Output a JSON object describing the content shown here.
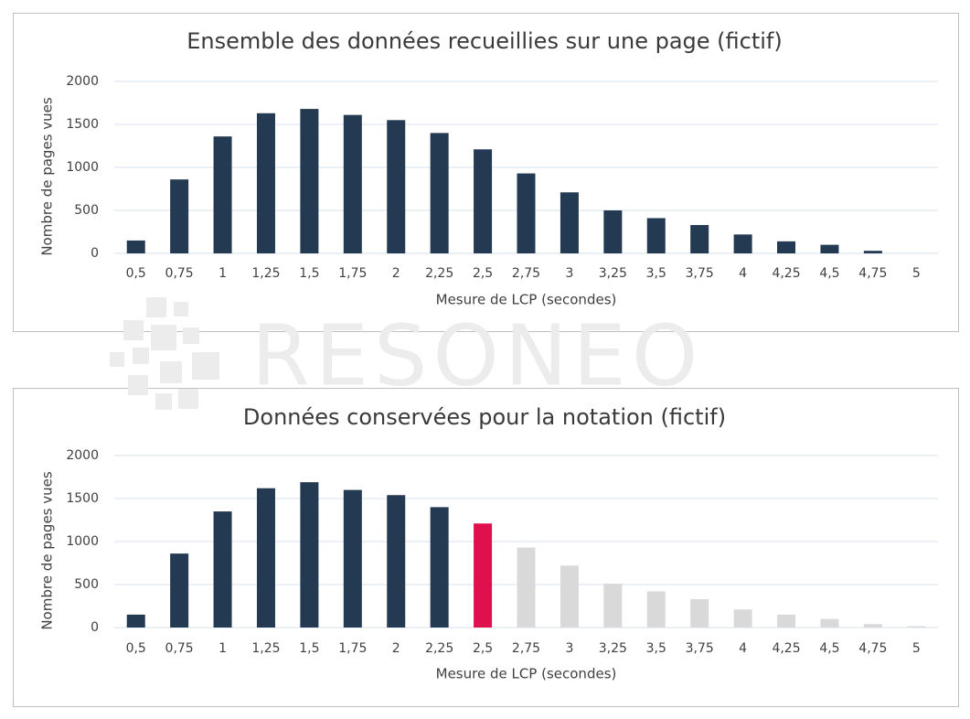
{
  "watermark": "RESONEO",
  "chart_data": [
    {
      "type": "bar",
      "title": "Ensemble des données recueillies sur une page (fictif)",
      "x_label": "Mesure de LCP (secondes)",
      "y_label": "Nombre de pages vues",
      "categories": [
        "0,5",
        "0,75",
        "1",
        "1,25",
        "1,5",
        "1,75",
        "2",
        "2,25",
        "2,5",
        "2,75",
        "3",
        "3,25",
        "3,5",
        "3,75",
        "4",
        "4,25",
        "4,5",
        "4,75",
        "5"
      ],
      "values": [
        150,
        860,
        1360,
        1630,
        1680,
        1610,
        1550,
        1400,
        1210,
        930,
        710,
        500,
        410,
        330,
        220,
        140,
        100,
        30,
        0
      ],
      "color": "#243a53",
      "ylim": [
        0,
        2000
      ],
      "yticks": [
        0,
        500,
        1000,
        1500,
        2000
      ],
      "grid": true
    },
    {
      "type": "bar",
      "title": "Données conservées pour la notation (fictif)",
      "x_label": "Mesure de LCP (secondes)",
      "y_label": "Nombre de pages vues",
      "categories": [
        "0,5",
        "0,75",
        "1",
        "1,25",
        "1,5",
        "1,75",
        "2",
        "2,25",
        "2,5",
        "2,75",
        "3",
        "3,25",
        "3,5",
        "3,75",
        "4",
        "4,25",
        "4,5",
        "4,75",
        "5"
      ],
      "values": [
        150,
        860,
        1350,
        1620,
        1690,
        1600,
        1540,
        1400,
        1210,
        930,
        720,
        510,
        420,
        330,
        210,
        150,
        100,
        40,
        15
      ],
      "colors": [
        "#243a53",
        "#243a53",
        "#243a53",
        "#243a53",
        "#243a53",
        "#243a53",
        "#243a53",
        "#243a53",
        "#e0104e",
        "#d9d9d9",
        "#d9d9d9",
        "#d9d9d9",
        "#d9d9d9",
        "#d9d9d9",
        "#d9d9d9",
        "#d9d9d9",
        "#d9d9d9",
        "#d9d9d9",
        "#d9d9d9"
      ],
      "ylim": [
        0,
        2000
      ],
      "yticks": [
        0,
        500,
        1000,
        1500,
        2000
      ],
      "grid": true
    }
  ]
}
